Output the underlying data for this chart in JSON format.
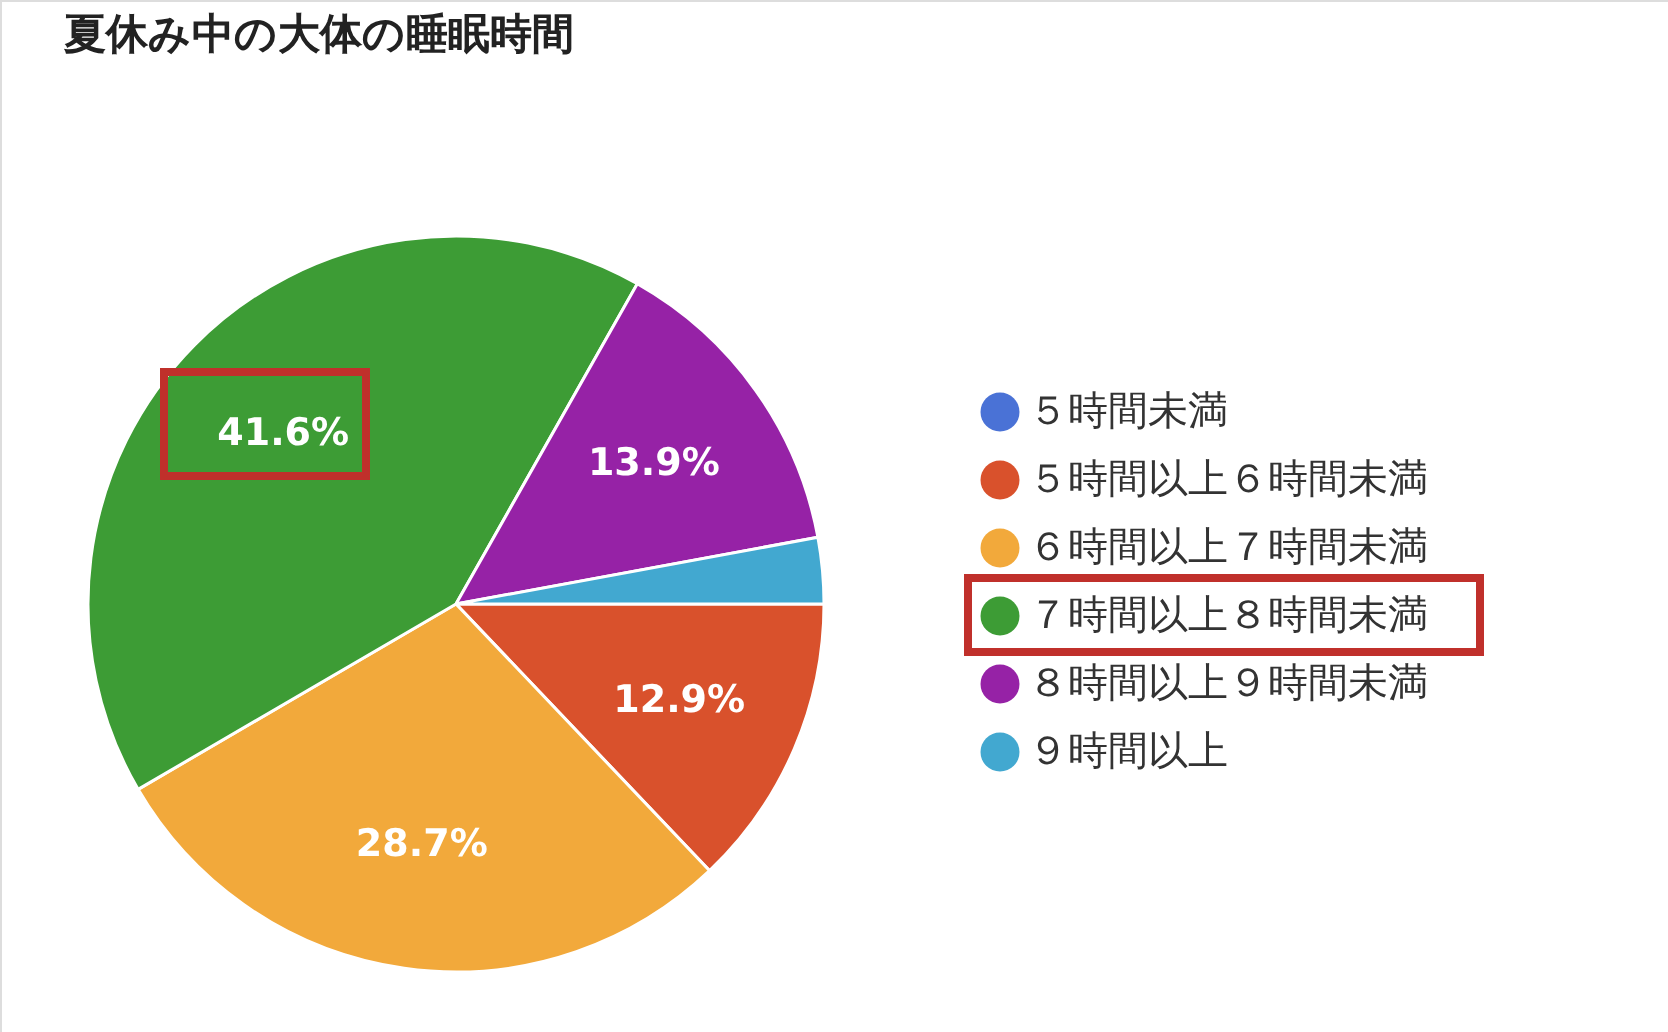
{
  "chart_data": {
    "type": "pie",
    "title": "夏休み中の大体の睡眠時間",
    "categories": [
      "５時間未満",
      "５時間以上６時間未満",
      "６時間以上７時間未満",
      "７時間以上８時間未満",
      "８時間以上９時間未満",
      "９時間以上"
    ],
    "values": [
      0,
      12.9,
      28.7,
      41.6,
      13.9,
      2.9
    ],
    "colors": [
      "#4a72d6",
      "#d9512c",
      "#f2a93b",
      "#3d9c35",
      "#9622a6",
      "#42a8d0"
    ],
    "value_labels": [
      null,
      "12.9%",
      "28.7%",
      "41.6%",
      "13.9%",
      null
    ],
    "legend": "right"
  }
}
